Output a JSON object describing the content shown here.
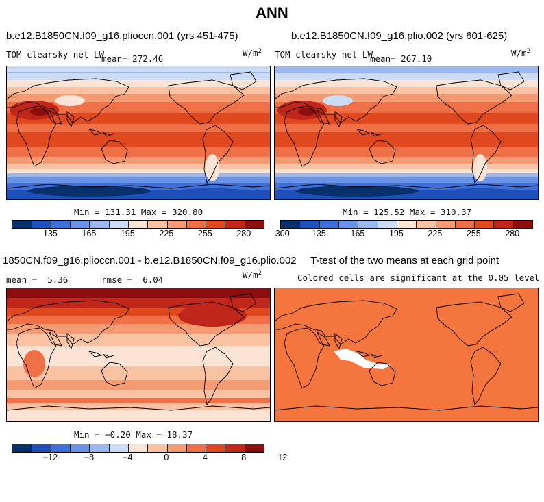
{
  "title": "ANN",
  "colors": [
    "#08306b",
    "#1f4fb8",
    "#3f6fd8",
    "#6a93e6",
    "#9cb8ee",
    "#cddcf5",
    "#fbe4d6",
    "#f9c2a3",
    "#f59b74",
    "#ef6f46",
    "#e0481f",
    "#c0261a",
    "#8b0f0f"
  ],
  "panels": {
    "top_left": {
      "title": "b.e12.B1850CN.f09_g16.plioccn.001 (yrs 451-475)",
      "var_label": "TOM clearsky net LW",
      "mean_label": "mean=",
      "mean": "272.46",
      "units": "W/m",
      "units_exp": "2",
      "minmax": "Min = 131.31 Max = 320.80",
      "ticks": [
        "135",
        "165",
        "195",
        "225",
        "255",
        "280",
        "300"
      ]
    },
    "top_right": {
      "title": "b.e12.B1850CN.f09_g16.plio.002 (yrs 601-625)",
      "var_label": "TOM clearsky net LW",
      "mean_label": "mean=",
      "mean": "267.10",
      "units": "W/m",
      "units_exp": "2",
      "minmax": "Min = 125.52 Max = 310.37",
      "ticks": [
        "135",
        "165",
        "195",
        "225",
        "255",
        "280",
        "300"
      ]
    },
    "bottom_left": {
      "title": "1850CN.f09_g16.plioccn.001 - b.e12.B1850CN.f09_g16.plio.002",
      "mean_label": "mean =",
      "mean": "5.36",
      "rmse_label": "rmse =",
      "rmse": "6.04",
      "units": "W/m",
      "units_exp": "2",
      "minmax": "Min = −0.20 Max = 18.37",
      "ticks": [
        "−12",
        "−8",
        "−4",
        "0",
        "4",
        "8",
        "12"
      ]
    },
    "bottom_right": {
      "title": "T-test of the two means at each grid point",
      "subtitle": "Colored cells are significant at the 0.05 level",
      "fill_color": "#f5753e"
    }
  }
}
